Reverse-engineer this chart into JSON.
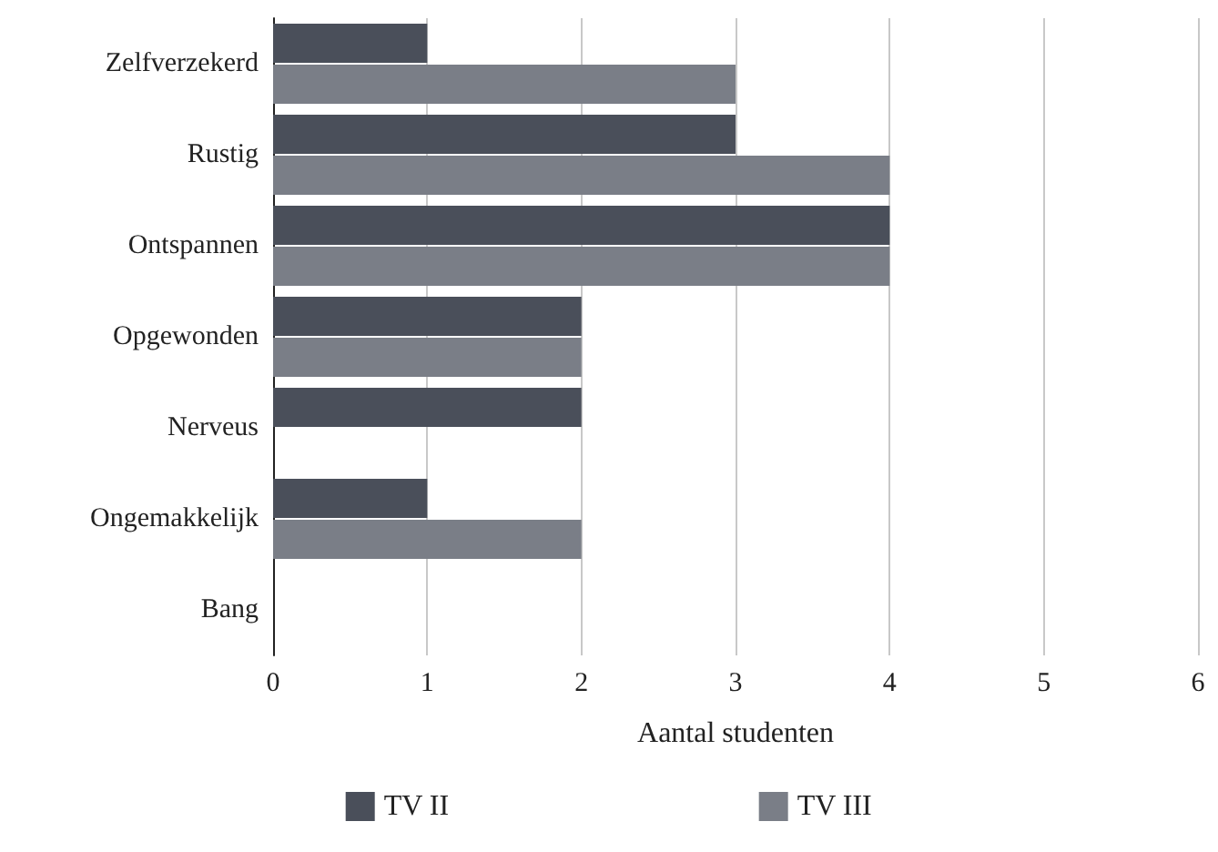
{
  "chart_data": {
    "type": "bar",
    "orientation": "horizontal",
    "xlabel": "Aantal studenten",
    "categories": [
      "Zelfverzekerd",
      "Rustig",
      "Ontspannen",
      "Opgewonden",
      "Nerveus",
      "Ongemakkelijk",
      "Bang"
    ],
    "series": [
      {
        "name": "TV II",
        "color": "#4a4f5a",
        "values": [
          1,
          3,
          4,
          2,
          2,
          1,
          0
        ]
      },
      {
        "name": "TV III",
        "color": "#7a7e87",
        "values": [
          3,
          4,
          4,
          2,
          0,
          2,
          0
        ]
      }
    ],
    "xlim": [
      0,
      6
    ],
    "xticks": [
      0,
      1,
      2,
      3,
      4,
      5,
      6
    ],
    "grid": "x",
    "legend": "bottom"
  }
}
